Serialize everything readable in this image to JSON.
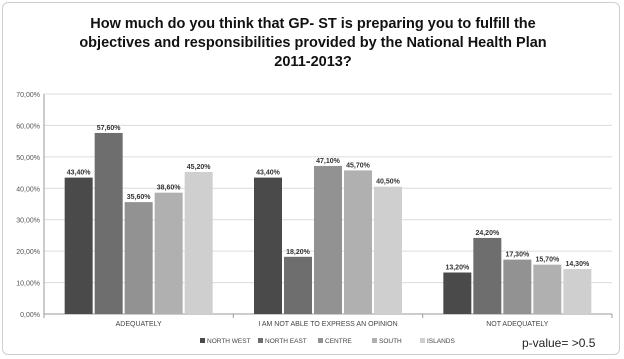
{
  "chart_data": {
    "type": "bar",
    "title_lines": [
      "How much do you think that GP- ST is preparing you to fulfill the",
      "objectives and responsibilities provided by the National Health Plan",
      "2011-2013?"
    ],
    "categories": [
      "ADEQUATELY",
      "I AM NOT ABLE TO EXPRESS AN OPINION",
      "NOT ADEQUATELY"
    ],
    "series": [
      {
        "name": "NORTH WEST",
        "color": "#4a4a4a",
        "values": [
          43.4,
          43.4,
          13.2
        ],
        "labels": [
          "43,40%",
          "43,40%",
          "13,20%"
        ]
      },
      {
        "name": "NORTH EAST",
        "color": "#6e6e6e",
        "values": [
          57.6,
          18.2,
          24.2
        ],
        "labels": [
          "57,60%",
          "18,20%",
          "24,20%"
        ]
      },
      {
        "name": "CENTRE",
        "color": "#929292",
        "values": [
          35.6,
          47.1,
          17.3
        ],
        "labels": [
          "35,60%",
          "47,10%",
          "17,30%"
        ]
      },
      {
        "name": "SOUTH",
        "color": "#b0b0b0",
        "values": [
          38.6,
          45.7,
          15.7
        ],
        "labels": [
          "38,60%",
          "45,70%",
          "15,70%"
        ]
      },
      {
        "name": "ISLANDS",
        "color": "#cfcfcf",
        "values": [
          45.2,
          40.5,
          14.3
        ],
        "labels": [
          "45,20%",
          "40,50%",
          "14,30%"
        ]
      }
    ],
    "yticks": [
      0,
      10,
      20,
      30,
      40,
      50,
      60,
      70
    ],
    "ytick_labels": [
      "0,00%",
      "10,00%",
      "20,00%",
      "30,00%",
      "40,00%",
      "50,00%",
      "60,00%",
      "70,00%"
    ],
    "ylim": [
      0,
      70
    ],
    "grid": true,
    "legend_position": "bottom",
    "annotation": "p-value= >0.5"
  }
}
